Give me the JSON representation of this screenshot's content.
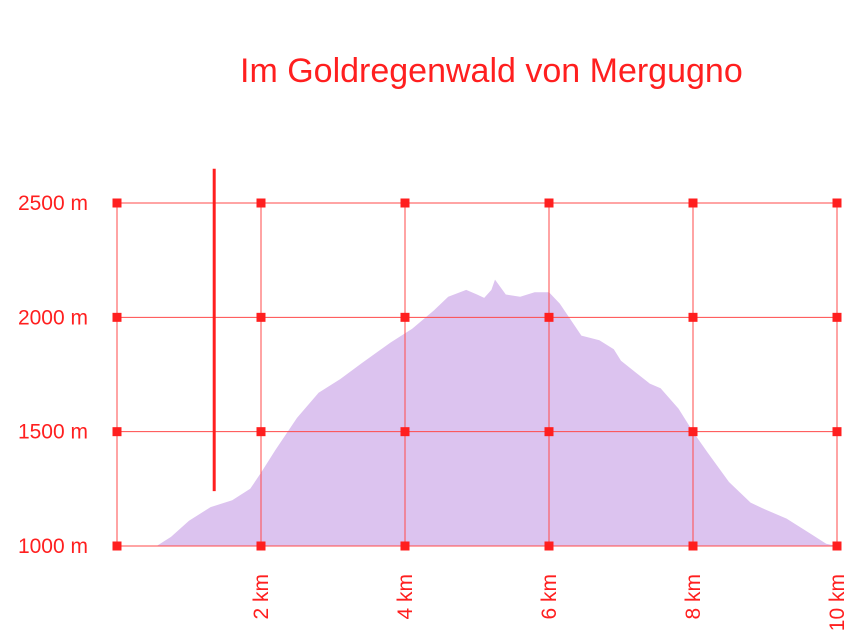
{
  "colors": {
    "accent": "#ff1f1f",
    "area_fill": "#dcc3ef",
    "grid": "#ff4a4a"
  },
  "chart_data": {
    "type": "area",
    "title": "Im Goldregenwald von Mergugno",
    "xlabel": "",
    "ylabel": "",
    "xlim": [
      0,
      10
    ],
    "ylim": [
      1000,
      2500
    ],
    "grid": true,
    "x_ticks": [
      0,
      2,
      4,
      6,
      8,
      10
    ],
    "x_tick_labels": [
      "",
      "2 km",
      "4 km",
      "6 km",
      "8 km",
      "10 km"
    ],
    "y_ticks": [
      1000,
      1500,
      2000,
      2500
    ],
    "y_tick_labels": [
      "1000 m",
      "1500 m",
      "2000 m",
      "2500 m"
    ],
    "marker_line": {
      "x": 1.35,
      "y_from": 1240,
      "y_to": 2650
    },
    "series": [
      {
        "x": [
          0.55,
          0.75,
          1.0,
          1.3,
          1.6,
          1.85,
          2.0,
          2.2,
          2.5,
          2.8,
          3.1,
          3.4,
          3.8,
          4.1,
          4.4,
          4.6,
          4.85,
          5.0,
          5.1,
          5.2,
          5.25,
          5.4,
          5.6,
          5.8,
          6.0,
          6.15,
          6.3,
          6.45,
          6.7,
          6.9,
          7.0,
          7.2,
          7.4,
          7.55,
          7.8,
          8.0,
          8.2,
          8.5,
          8.8,
          9.0,
          9.3,
          9.6,
          9.85,
          10.0
        ],
        "y": [
          1000,
          1040,
          1110,
          1170,
          1200,
          1250,
          1320,
          1420,
          1560,
          1670,
          1730,
          1800,
          1890,
          1950,
          2030,
          2090,
          2120,
          2100,
          2085,
          2120,
          2165,
          2100,
          2090,
          2110,
          2110,
          2060,
          1990,
          1920,
          1900,
          1860,
          1810,
          1760,
          1710,
          1690,
          1600,
          1500,
          1410,
          1280,
          1190,
          1160,
          1120,
          1060,
          1010,
          1000
        ]
      }
    ]
  }
}
